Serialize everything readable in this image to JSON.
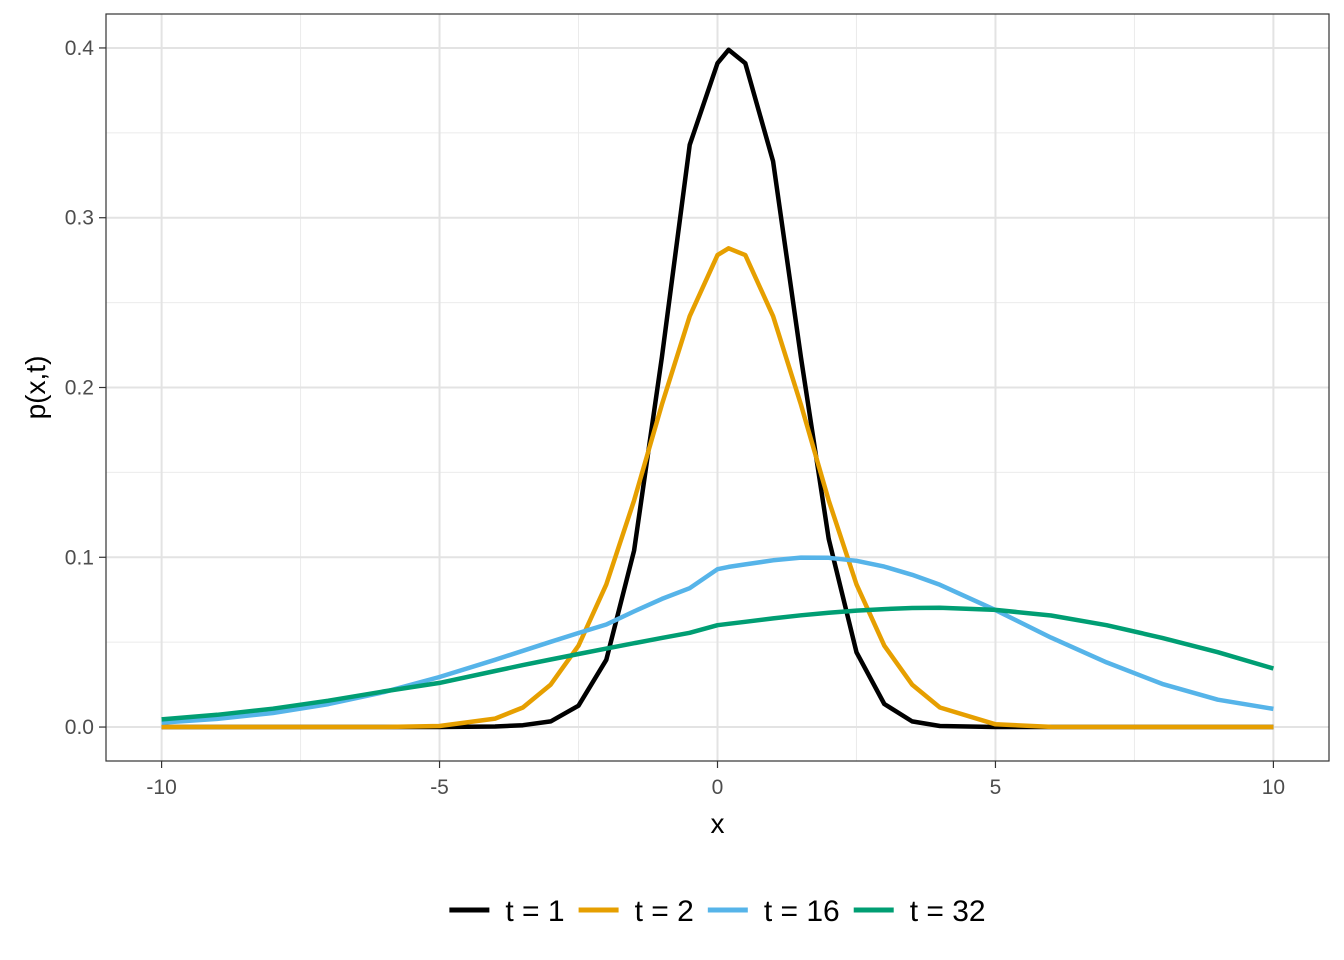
{
  "chart_data": {
    "type": "line",
    "xlabel": "x",
    "ylabel": "p(x,t)",
    "xlim": [
      -11,
      11
    ],
    "ylim": [
      -0.02,
      0.42
    ],
    "x_ticks": [
      -10,
      -5,
      0,
      5,
      10
    ],
    "x_tick_labels": [
      "-10",
      "-5",
      "0",
      "5",
      "10"
    ],
    "y_ticks": [
      0.0,
      0.1,
      0.2,
      0.3,
      0.4
    ],
    "y_tick_labels": [
      "0.0",
      "0.1",
      "0.2",
      "0.3",
      "0.4"
    ],
    "x_minor_ticks": [
      -7.5,
      -2.5,
      2.5,
      7.5
    ],
    "y_minor_ticks": [
      0.05,
      0.15,
      0.25,
      0.35
    ],
    "grid": true,
    "legend_position": "bottom",
    "x": [
      -10,
      -9,
      -8,
      -7,
      -6,
      -5,
      -4,
      -3.5,
      -3,
      -2.5,
      -2,
      -1.5,
      -1,
      -0.5,
      0,
      0.2,
      0.5,
      1,
      1.5,
      2,
      2.5,
      3,
      3.5,
      4,
      5,
      6,
      7,
      8,
      9,
      10
    ],
    "series": [
      {
        "name": "t = 1",
        "color": "#000000",
        "values": [
          0,
          0,
          0,
          0,
          0,
          0,
          0.0003,
          0.0011,
          0.0033,
          0.0126,
          0.0396,
          0.104,
          0.2179,
          0.3429,
          0.391,
          0.3989,
          0.391,
          0.3332,
          0.2179,
          0.1109,
          0.044,
          0.0136,
          0.0033,
          0.0006,
          0,
          0,
          0,
          0,
          0,
          0
        ]
      },
      {
        "name": "t = 2",
        "color": "#E69F00",
        "values": [
          0,
          0,
          0,
          0,
          0,
          0.0006,
          0.005,
          0.0115,
          0.025,
          0.0479,
          0.084,
          0.1335,
          0.19,
          0.242,
          0.278,
          0.282,
          0.278,
          0.242,
          0.19,
          0.1335,
          0.084,
          0.0479,
          0.025,
          0.0115,
          0.0016,
          0.0001,
          0,
          0,
          0,
          0
        ]
      },
      {
        "name": "t = 16",
        "color": "#56B4E9",
        "values": [
          0.0026,
          0.0048,
          0.0083,
          0.0135,
          0.0206,
          0.0295,
          0.0396,
          0.0449,
          0.0502,
          0.0554,
          0.0604,
          0.0681,
          0.0755,
          0.0818,
          0.093,
          0.0943,
          0.0958,
          0.0982,
          0.0998,
          0.0997,
          0.0979,
          0.0945,
          0.0897,
          0.0838,
          0.0689,
          0.0527,
          0.0381,
          0.0254,
          0.0161,
          0.0107
        ]
      },
      {
        "name": "t = 32",
        "color": "#009E73",
        "values": [
          0.0045,
          0.0072,
          0.0108,
          0.0155,
          0.021,
          0.026,
          0.033,
          0.0365,
          0.0398,
          0.043,
          0.0462,
          0.0494,
          0.0525,
          0.0555,
          0.06,
          0.0608,
          0.062,
          0.064,
          0.0658,
          0.0673,
          0.0686,
          0.0695,
          0.0701,
          0.0703,
          0.069,
          0.0657,
          0.06,
          0.0525,
          0.0441,
          0.0345
        ]
      }
    ]
  }
}
